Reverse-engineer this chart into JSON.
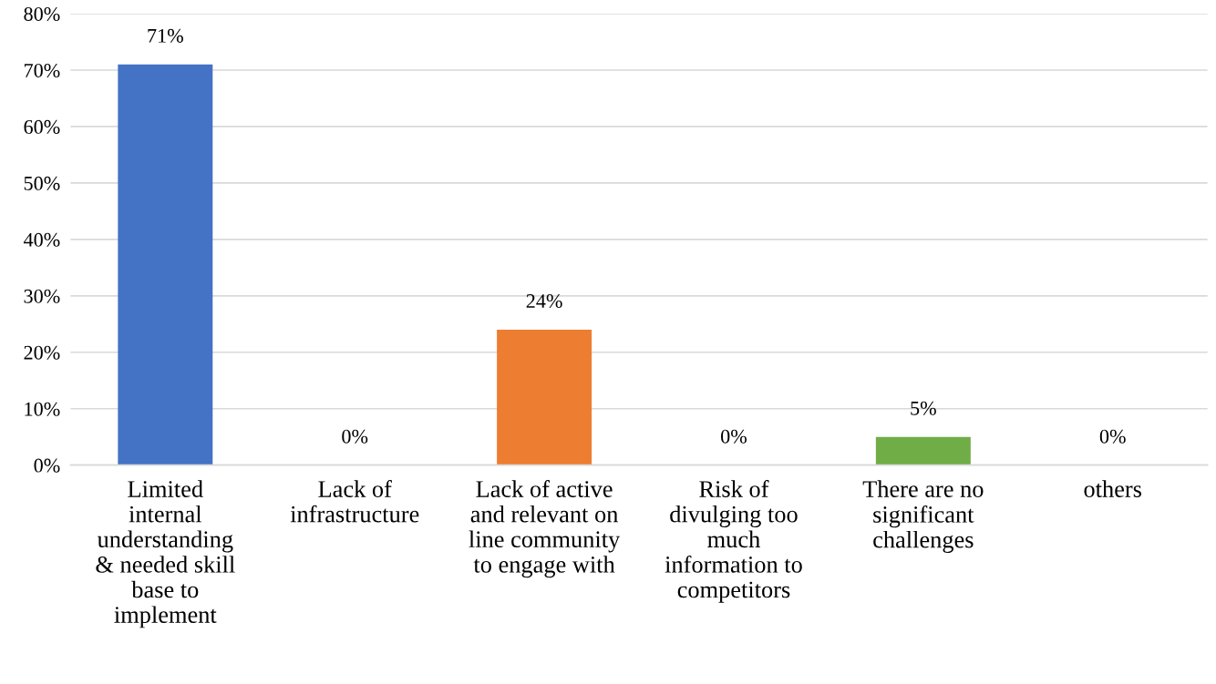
{
  "chart_data": {
    "type": "bar",
    "categories": [
      "Limited\ninternal\nunderstanding\n& needed skill\nbase to\nimplement",
      "Lack of\ninfrastructure",
      "Lack of active\nand relevant on\nline community\nto engage with",
      "Risk of\ndivulging too\nmuch\ninformation to\ncompetitors",
      "There are no\nsignificant\nchallenges",
      "others"
    ],
    "values": [
      71,
      0,
      24,
      0,
      5,
      0
    ],
    "value_labels": [
      "71%",
      "0%",
      "24%",
      "0%",
      "5%",
      "0%"
    ],
    "colors": [
      "#4472c4",
      "#a5a5a5",
      "#ed7d31",
      "#a5a5a5",
      "#70ad47",
      "#a5a5a5"
    ],
    "ylim": [
      0,
      80
    ],
    "yticks": [
      {
        "value": 0,
        "label": "0%"
      },
      {
        "value": 10,
        "label": "10%"
      },
      {
        "value": 20,
        "label": "20%"
      },
      {
        "value": 30,
        "label": "30%"
      },
      {
        "value": 40,
        "label": "40%"
      },
      {
        "value": 50,
        "label": "50%"
      },
      {
        "value": 60,
        "label": "60%"
      },
      {
        "value": 70,
        "label": "70%"
      },
      {
        "value": 80,
        "label": "80%"
      }
    ],
    "grid": "y"
  }
}
